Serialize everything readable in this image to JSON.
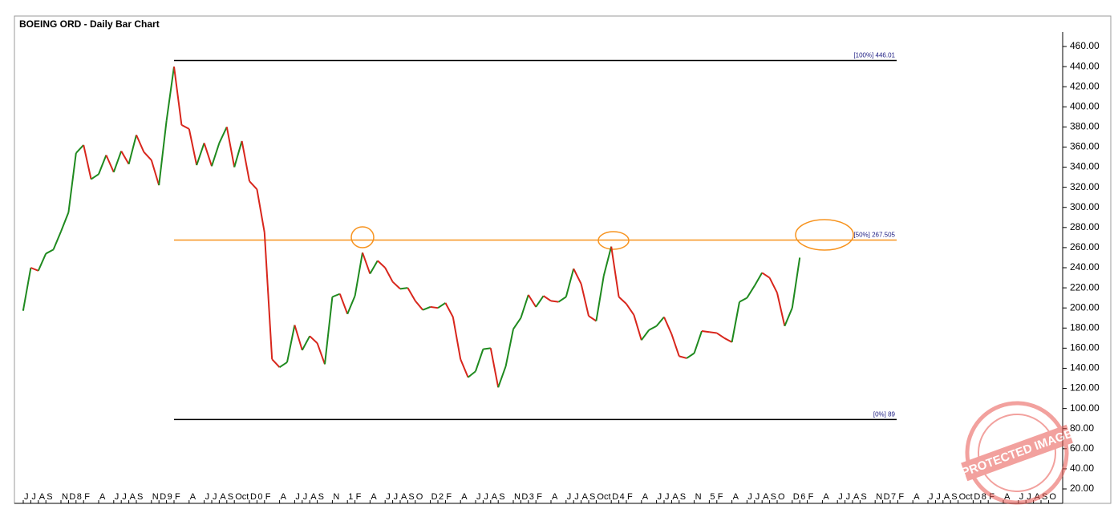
{
  "chart_data": {
    "type": "line",
    "title": "BOEING ORD - Daily Bar Chart",
    "up_color": "#1f8a1f",
    "down_color": "#d8261c",
    "categories": [
      "J",
      "J",
      "A",
      "S",
      null,
      "N",
      "D",
      "8",
      "F",
      null,
      "A",
      null,
      "J",
      "J",
      "A",
      "S",
      null,
      "N",
      "D",
      "9",
      "F",
      null,
      "A",
      null,
      "J",
      "J",
      "A",
      "S",
      "Oct",
      null,
      "D",
      "0",
      "F",
      null,
      "A",
      null,
      "J",
      "J",
      "A",
      "S",
      null,
      "N",
      null,
      "1",
      "F",
      null,
      "A",
      null,
      "J",
      "J",
      "A",
      "S",
      "O",
      null,
      "D",
      "2",
      "F",
      null,
      "A",
      null,
      "J",
      "J",
      "A",
      "S",
      null,
      "N",
      "D",
      "3",
      "F",
      null,
      "A",
      null,
      "J",
      "J",
      "A",
      "S",
      "Oct",
      null,
      "D",
      "4",
      "F",
      null,
      "A",
      null,
      "J",
      "J",
      "A",
      "S",
      null,
      "N",
      null,
      "5",
      "F",
      null,
      "A",
      null,
      "J",
      "J",
      "A",
      "S",
      "O",
      null,
      "D",
      "6",
      "F",
      null,
      "A",
      null,
      "J",
      "J",
      "A",
      "S",
      null,
      "N",
      "D",
      "7",
      "F",
      null,
      "A",
      null,
      "J",
      "J",
      "A",
      "S",
      "Oct",
      null,
      "D",
      "8",
      "F",
      null,
      "A",
      null,
      "J",
      "J",
      "A",
      "S",
      "O",
      null
    ],
    "values": [
      198,
      240,
      237,
      254,
      258,
      276,
      295,
      354,
      362,
      328,
      333,
      352,
      335,
      356,
      343,
      372,
      355,
      347,
      322,
      386,
      440,
      382,
      378,
      342,
      364,
      341,
      364,
      380,
      340,
      366,
      326,
      318,
      275,
      149,
      141,
      146,
      183,
      158,
      172,
      165,
      144,
      211,
      214,
      194,
      212,
      255,
      234,
      247,
      240,
      226,
      219,
      220,
      207,
      198,
      201,
      200,
      205,
      191,
      149,
      131,
      137,
      159,
      160,
      121,
      142,
      179,
      190,
      213,
      201,
      212,
      207,
      206,
      211,
      239,
      224,
      192,
      187,
      232,
      261,
      211,
      204,
      193,
      168,
      178,
      182,
      191,
      174,
      152,
      150,
      155,
      177,
      176,
      175,
      170,
      166,
      206,
      210,
      222,
      235,
      230,
      215,
      182,
      200,
      250,
      null,
      null,
      null,
      null,
      null,
      null,
      null,
      null,
      null,
      null,
      null,
      null,
      null,
      null,
      null,
      null,
      null,
      null,
      null,
      null,
      null,
      null,
      null,
      null,
      null,
      null,
      null,
      null,
      null,
      null,
      null,
      null,
      null,
      null
    ],
    "levels": [
      {
        "label": "[100%] 446.01",
        "value": 446.01,
        "color": "#000000"
      },
      {
        "label": "[50%] 267.505",
        "value": 267.505,
        "color": "#f7931e"
      },
      {
        "label": "[0%] 89",
        "value": 89,
        "color": "#000000"
      }
    ],
    "ylim": [
      20,
      460
    ],
    "yticks": [
      {
        "value": 20,
        "label": "20.00"
      },
      {
        "value": 40,
        "label": "40.00"
      },
      {
        "value": 60,
        "label": "60.00"
      },
      {
        "value": 80,
        "label": "80.00"
      },
      {
        "value": 100,
        "label": "100.00"
      },
      {
        "value": 120,
        "label": "120.00"
      },
      {
        "value": 140,
        "label": "140.00"
      },
      {
        "value": 160,
        "label": "160.00"
      },
      {
        "value": 180,
        "label": "180.00"
      },
      {
        "value": 200,
        "label": "200.00"
      },
      {
        "value": 220,
        "label": "220.00"
      },
      {
        "value": 240,
        "label": "240.00"
      },
      {
        "value": 260,
        "label": "260.00"
      },
      {
        "value": 280,
        "label": "280.00"
      },
      {
        "value": 300,
        "label": "300.00"
      },
      {
        "value": 320,
        "label": "320.00"
      },
      {
        "value": 340,
        "label": "340.00"
      },
      {
        "value": 360,
        "label": "360.00"
      },
      {
        "value": 380,
        "label": "380.00"
      },
      {
        "value": 400,
        "label": "400.00"
      },
      {
        "value": 420,
        "label": "420.00"
      },
      {
        "value": 440,
        "label": "440.00"
      },
      {
        "value": 460,
        "label": "460.00"
      }
    ],
    "watermark": "PROTECTED IMAGE"
  }
}
